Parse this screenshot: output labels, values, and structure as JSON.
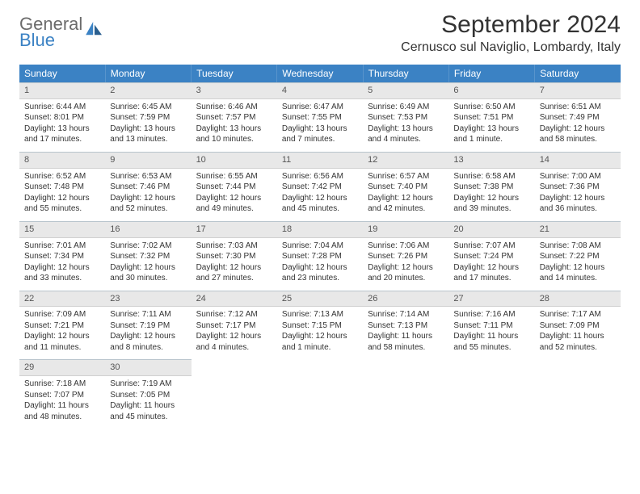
{
  "logo": {
    "general": "General",
    "blue": "Blue"
  },
  "title": "September 2024",
  "location": "Cernusco sul Naviglio, Lombardy, Italy",
  "colors": {
    "header_bg": "#3b82c4",
    "header_fg": "#ffffff",
    "daynum_bg": "#e8e8e8",
    "daynum_border_top": "#b8c4cc",
    "text": "#333333",
    "logo_gray": "#6b6b6b",
    "logo_blue": "#3b82c4"
  },
  "weekdays": [
    "Sunday",
    "Monday",
    "Tuesday",
    "Wednesday",
    "Thursday",
    "Friday",
    "Saturday"
  ],
  "start_weekday_index": 0,
  "days": [
    {
      "n": 1,
      "sunrise": "6:44 AM",
      "sunset": "8:01 PM",
      "daylight": "13 hours and 17 minutes."
    },
    {
      "n": 2,
      "sunrise": "6:45 AM",
      "sunset": "7:59 PM",
      "daylight": "13 hours and 13 minutes."
    },
    {
      "n": 3,
      "sunrise": "6:46 AM",
      "sunset": "7:57 PM",
      "daylight": "13 hours and 10 minutes."
    },
    {
      "n": 4,
      "sunrise": "6:47 AM",
      "sunset": "7:55 PM",
      "daylight": "13 hours and 7 minutes."
    },
    {
      "n": 5,
      "sunrise": "6:49 AM",
      "sunset": "7:53 PM",
      "daylight": "13 hours and 4 minutes."
    },
    {
      "n": 6,
      "sunrise": "6:50 AM",
      "sunset": "7:51 PM",
      "daylight": "13 hours and 1 minute."
    },
    {
      "n": 7,
      "sunrise": "6:51 AM",
      "sunset": "7:49 PM",
      "daylight": "12 hours and 58 minutes."
    },
    {
      "n": 8,
      "sunrise": "6:52 AM",
      "sunset": "7:48 PM",
      "daylight": "12 hours and 55 minutes."
    },
    {
      "n": 9,
      "sunrise": "6:53 AM",
      "sunset": "7:46 PM",
      "daylight": "12 hours and 52 minutes."
    },
    {
      "n": 10,
      "sunrise": "6:55 AM",
      "sunset": "7:44 PM",
      "daylight": "12 hours and 49 minutes."
    },
    {
      "n": 11,
      "sunrise": "6:56 AM",
      "sunset": "7:42 PM",
      "daylight": "12 hours and 45 minutes."
    },
    {
      "n": 12,
      "sunrise": "6:57 AM",
      "sunset": "7:40 PM",
      "daylight": "12 hours and 42 minutes."
    },
    {
      "n": 13,
      "sunrise": "6:58 AM",
      "sunset": "7:38 PM",
      "daylight": "12 hours and 39 minutes."
    },
    {
      "n": 14,
      "sunrise": "7:00 AM",
      "sunset": "7:36 PM",
      "daylight": "12 hours and 36 minutes."
    },
    {
      "n": 15,
      "sunrise": "7:01 AM",
      "sunset": "7:34 PM",
      "daylight": "12 hours and 33 minutes."
    },
    {
      "n": 16,
      "sunrise": "7:02 AM",
      "sunset": "7:32 PM",
      "daylight": "12 hours and 30 minutes."
    },
    {
      "n": 17,
      "sunrise": "7:03 AM",
      "sunset": "7:30 PM",
      "daylight": "12 hours and 27 minutes."
    },
    {
      "n": 18,
      "sunrise": "7:04 AM",
      "sunset": "7:28 PM",
      "daylight": "12 hours and 23 minutes."
    },
    {
      "n": 19,
      "sunrise": "7:06 AM",
      "sunset": "7:26 PM",
      "daylight": "12 hours and 20 minutes."
    },
    {
      "n": 20,
      "sunrise": "7:07 AM",
      "sunset": "7:24 PM",
      "daylight": "12 hours and 17 minutes."
    },
    {
      "n": 21,
      "sunrise": "7:08 AM",
      "sunset": "7:22 PM",
      "daylight": "12 hours and 14 minutes."
    },
    {
      "n": 22,
      "sunrise": "7:09 AM",
      "sunset": "7:21 PM",
      "daylight": "12 hours and 11 minutes."
    },
    {
      "n": 23,
      "sunrise": "7:11 AM",
      "sunset": "7:19 PM",
      "daylight": "12 hours and 8 minutes."
    },
    {
      "n": 24,
      "sunrise": "7:12 AM",
      "sunset": "7:17 PM",
      "daylight": "12 hours and 4 minutes."
    },
    {
      "n": 25,
      "sunrise": "7:13 AM",
      "sunset": "7:15 PM",
      "daylight": "12 hours and 1 minute."
    },
    {
      "n": 26,
      "sunrise": "7:14 AM",
      "sunset": "7:13 PM",
      "daylight": "11 hours and 58 minutes."
    },
    {
      "n": 27,
      "sunrise": "7:16 AM",
      "sunset": "7:11 PM",
      "daylight": "11 hours and 55 minutes."
    },
    {
      "n": 28,
      "sunrise": "7:17 AM",
      "sunset": "7:09 PM",
      "daylight": "11 hours and 52 minutes."
    },
    {
      "n": 29,
      "sunrise": "7:18 AM",
      "sunset": "7:07 PM",
      "daylight": "11 hours and 48 minutes."
    },
    {
      "n": 30,
      "sunrise": "7:19 AM",
      "sunset": "7:05 PM",
      "daylight": "11 hours and 45 minutes."
    }
  ],
  "labels": {
    "sunrise_prefix": "Sunrise: ",
    "sunset_prefix": "Sunset: ",
    "daylight_prefix": "Daylight: "
  }
}
